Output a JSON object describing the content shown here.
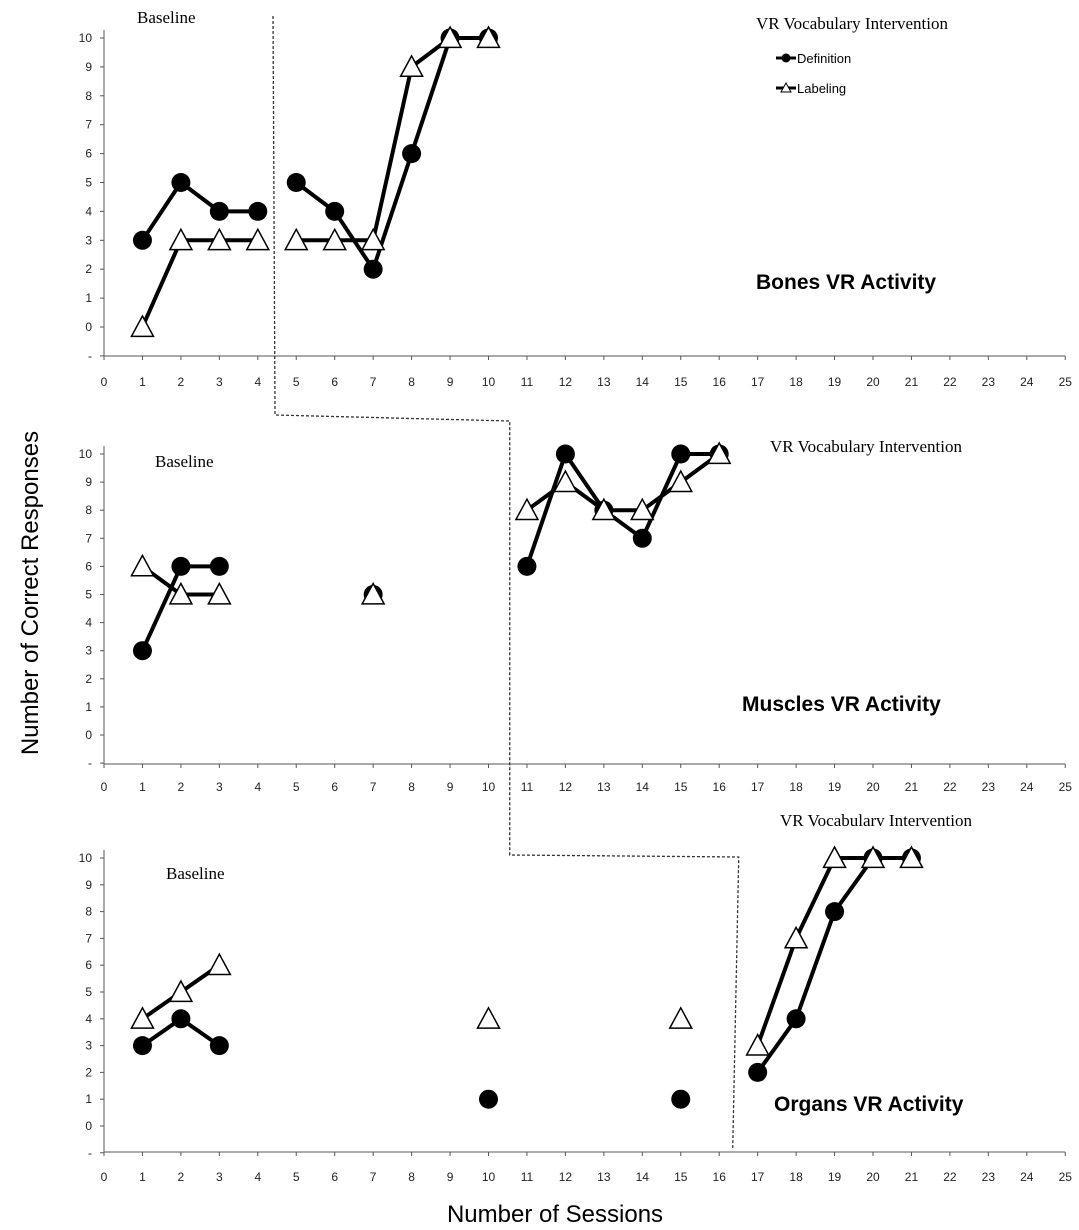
{
  "chart_data": {
    "type": "line",
    "ylabel": "Number of Correct Responses",
    "xlabel": "Number of Sessions",
    "x_ticks": [
      "0",
      "1",
      "2",
      "3",
      "4",
      "5",
      "6",
      "7",
      "8",
      "9",
      "10",
      "11",
      "12",
      "13",
      "14",
      "15",
      "16",
      "17",
      "18",
      "19",
      "20",
      "21",
      "22",
      "23",
      "24",
      "25"
    ],
    "y_ticks": [
      "-",
      "0",
      "1",
      "2",
      "3",
      "4",
      "5",
      "6",
      "7",
      "8",
      "9",
      "10"
    ],
    "xlim": [
      0,
      25
    ],
    "ylim": [
      -1,
      10
    ],
    "legend": {
      "placement": "top-right",
      "entries": [
        {
          "name": "Definition",
          "marker": "filled-circle"
        },
        {
          "name": "Labeling",
          "marker": "open-triangle"
        }
      ]
    },
    "panels": [
      {
        "title": "Bones VR Activity",
        "baseline_label": "Baseline",
        "intervention_label": "VR Vocabulary Intervention",
        "phase_change_after_session": 4.5,
        "series": [
          {
            "name": "Definition",
            "segments": [
              [
                [
                  1,
                  3
                ],
                [
                  2,
                  5
                ],
                [
                  3,
                  4
                ],
                [
                  4,
                  4
                ]
              ],
              [
                [
                  5,
                  5
                ],
                [
                  6,
                  4
                ],
                [
                  7,
                  2
                ],
                [
                  8,
                  6
                ],
                [
                  9,
                  10
                ],
                [
                  10,
                  10
                ]
              ]
            ]
          },
          {
            "name": "Labeling",
            "segments": [
              [
                [
                  1,
                  0
                ],
                [
                  2,
                  3
                ],
                [
                  3,
                  3
                ],
                [
                  4,
                  3
                ]
              ],
              [
                [
                  5,
                  3
                ],
                [
                  6,
                  3
                ],
                [
                  7,
                  3
                ],
                [
                  8,
                  9
                ],
                [
                  9,
                  10
                ],
                [
                  10,
                  10
                ]
              ]
            ]
          }
        ]
      },
      {
        "title": "Muscles VR Activity",
        "baseline_label": "Baseline",
        "intervention_label": "VR Vocabulary Intervention",
        "phase_change_after_session": 10.5,
        "series": [
          {
            "name": "Definition",
            "segments": [
              [
                [
                  1,
                  3
                ],
                [
                  2,
                  6
                ],
                [
                  3,
                  6
                ]
              ],
              [
                [
                  7,
                  5
                ]
              ],
              [
                [
                  11,
                  6
                ],
                [
                  12,
                  10
                ],
                [
                  13,
                  8
                ],
                [
                  14,
                  7
                ],
                [
                  15,
                  10
                ],
                [
                  16,
                  10
                ]
              ]
            ]
          },
          {
            "name": "Labeling",
            "segments": [
              [
                [
                  1,
                  6
                ],
                [
                  2,
                  5
                ],
                [
                  3,
                  5
                ]
              ],
              [
                [
                  7,
                  5
                ]
              ],
              [
                [
                  11,
                  8
                ],
                [
                  12,
                  9
                ],
                [
                  13,
                  8
                ],
                [
                  14,
                  8
                ],
                [
                  15,
                  9
                ],
                [
                  16,
                  10
                ]
              ]
            ]
          }
        ]
      },
      {
        "title": "Organs VR Activity",
        "baseline_label": "Baseline",
        "intervention_label": "VR Vocabularv Intervention",
        "phase_change_after_session": 16.3,
        "series": [
          {
            "name": "Definition",
            "segments": [
              [
                [
                  1,
                  3
                ],
                [
                  2,
                  4
                ],
                [
                  3,
                  3
                ]
              ],
              [
                [
                  10,
                  1
                ]
              ],
              [
                [
                  15,
                  1
                ]
              ],
              [
                [
                  17,
                  2
                ],
                [
                  18,
                  4
                ],
                [
                  19,
                  8
                ],
                [
                  20,
                  10
                ],
                [
                  21,
                  10
                ]
              ]
            ]
          },
          {
            "name": "Labeling",
            "segments": [
              [
                [
                  1,
                  4
                ],
                [
                  2,
                  5
                ],
                [
                  3,
                  6
                ]
              ],
              [
                [
                  10,
                  4
                ]
              ],
              [
                [
                  15,
                  4
                ]
              ],
              [
                [
                  17,
                  3
                ],
                [
                  18,
                  7
                ],
                [
                  19,
                  10
                ],
                [
                  20,
                  10
                ],
                [
                  21,
                  10
                ]
              ]
            ]
          }
        ]
      }
    ]
  }
}
